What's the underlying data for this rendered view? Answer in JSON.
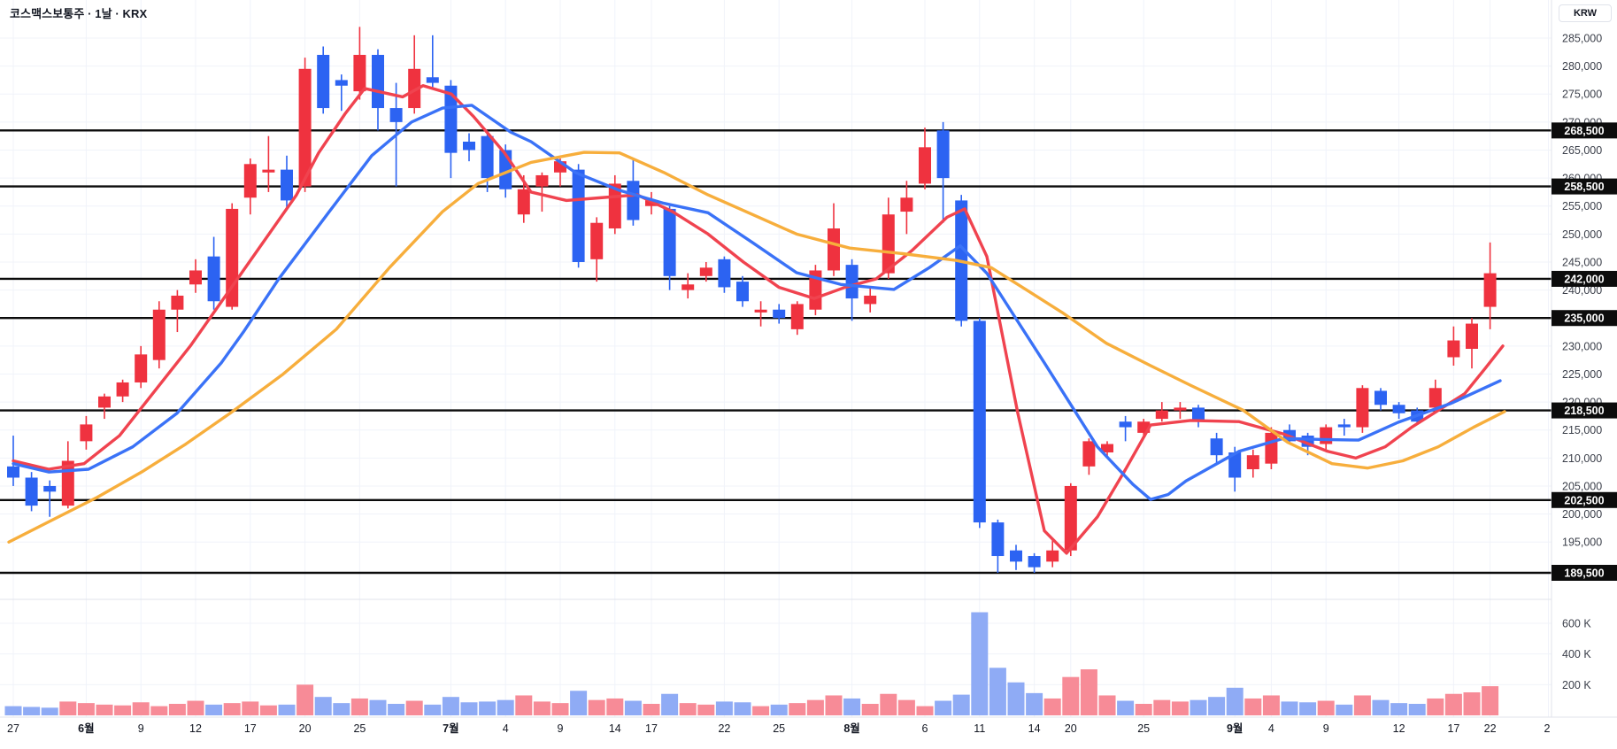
{
  "header": {
    "title": "코스맥스보통주 · 1날 · KRX"
  },
  "price_axis": {
    "currency_label": "KRW"
  },
  "colors": {
    "background": "#ffffff",
    "up": "#ef323f",
    "down": "#2c63f2",
    "ma_fast": "#f0434f",
    "ma_mid": "#3a72f7",
    "ma_slow": "#f7ae3c",
    "volume_up": "#f78b97",
    "volume_down": "#8fabf5",
    "grid": "#f0f3fa",
    "level_line": "#0b0b0b",
    "badge_bg": "#0c0c0c",
    "badge_text": "#ffffff",
    "axis_text": "#3c404b",
    "time_text": "#131722",
    "border": "#e0e3eb"
  },
  "chart_data": {
    "type": "candlestick",
    "title": "코스맥스보통주 · 1날 · KRX",
    "exchange": "KRX",
    "interval": "1날",
    "currency": "KRW",
    "grid": true,
    "y_axis": {
      "tick_min": 195000,
      "tick_max": 285000,
      "tick_step": 5000
    },
    "volume_ticks": [
      {
        "value": 600,
        "label": "600 K"
      },
      {
        "value": 400,
        "label": "400 K"
      },
      {
        "value": 200,
        "label": "200 K"
      }
    ],
    "horizontal_levels": [
      268500,
      258500,
      242000,
      235000,
      218500,
      202500,
      189500
    ],
    "x_labels": [
      {
        "i": 0,
        "t": "27"
      },
      {
        "i": 4,
        "t": "6월",
        "month": true
      },
      {
        "i": 7,
        "t": "9"
      },
      {
        "i": 10,
        "t": "12"
      },
      {
        "i": 13,
        "t": "17"
      },
      {
        "i": 16,
        "t": "20"
      },
      {
        "i": 19,
        "t": "25"
      },
      {
        "i": 24,
        "t": "7월",
        "month": true
      },
      {
        "i": 27,
        "t": "4"
      },
      {
        "i": 30,
        "t": "9"
      },
      {
        "i": 33,
        "t": "14"
      },
      {
        "i": 35,
        "t": "17"
      },
      {
        "i": 39,
        "t": "22"
      },
      {
        "i": 42,
        "t": "25"
      },
      {
        "i": 46,
        "t": "8월",
        "month": true
      },
      {
        "i": 50,
        "t": "6"
      },
      {
        "i": 53,
        "t": "11"
      },
      {
        "i": 56,
        "t": "14"
      },
      {
        "i": 58,
        "t": "20"
      },
      {
        "i": 62,
        "t": "25"
      },
      {
        "i": 67,
        "t": "9월",
        "month": true
      },
      {
        "i": 69,
        "t": "4"
      },
      {
        "i": 72,
        "t": "9"
      },
      {
        "i": 76,
        "t": "12"
      },
      {
        "i": 79,
        "t": "17"
      },
      {
        "i": 81,
        "t": "22"
      },
      {
        "i": 84.2,
        "t": "2"
      }
    ],
    "volume_unit": "K",
    "candles": [
      [
        208500,
        214000,
        205000,
        206500,
        60
      ],
      [
        206500,
        207500,
        200500,
        201500,
        55
      ],
      [
        205000,
        206000,
        199500,
        204000,
        50
      ],
      [
        201500,
        213000,
        201000,
        209500,
        90
      ],
      [
        213000,
        217500,
        211500,
        216000,
        80
      ],
      [
        219000,
        221500,
        217000,
        221000,
        70
      ],
      [
        221000,
        224000,
        220000,
        223500,
        65
      ],
      [
        223500,
        230000,
        222500,
        228500,
        85
      ],
      [
        227500,
        238000,
        226000,
        236500,
        60
      ],
      [
        236500,
        240000,
        232500,
        239000,
        75
      ],
      [
        241000,
        245500,
        239500,
        243500,
        95
      ],
      [
        246000,
        249500,
        236500,
        238000,
        70
      ],
      [
        237000,
        255500,
        236500,
        254500,
        80
      ],
      [
        256500,
        263500,
        253500,
        262500,
        90
      ],
      [
        261000,
        267500,
        257500,
        261500,
        65
      ],
      [
        261500,
        264000,
        254500,
        256000,
        70
      ],
      [
        258500,
        281500,
        257500,
        279500,
        200
      ],
      [
        282000,
        283500,
        271500,
        272500,
        120
      ],
      [
        277500,
        278500,
        272000,
        276500,
        80
      ],
      [
        275500,
        287000,
        274000,
        282000,
        110
      ],
      [
        282000,
        283000,
        268500,
        272500,
        100
      ],
      [
        272500,
        277000,
        258500,
        270000,
        75
      ],
      [
        272500,
        285500,
        271500,
        279500,
        95
      ],
      [
        278000,
        285500,
        276000,
        277000,
        70
      ],
      [
        276500,
        277500,
        260000,
        264500,
        120
      ],
      [
        266500,
        268000,
        263000,
        265000,
        85
      ],
      [
        267500,
        268500,
        257500,
        260000,
        90
      ],
      [
        265000,
        266000,
        256500,
        258000,
        100
      ],
      [
        253500,
        260500,
        252000,
        258000,
        130
      ],
      [
        258500,
        261000,
        254000,
        260500,
        90
      ],
      [
        261000,
        263500,
        258500,
        263000,
        80
      ],
      [
        261500,
        262500,
        244000,
        245000,
        160
      ],
      [
        245500,
        253000,
        241500,
        252000,
        100
      ],
      [
        251000,
        260500,
        250000,
        259000,
        110
      ],
      [
        259500,
        263500,
        251500,
        252500,
        95
      ],
      [
        255000,
        257500,
        253500,
        256000,
        75
      ],
      [
        254500,
        255000,
        240000,
        242500,
        140
      ],
      [
        240000,
        243000,
        238500,
        241000,
        80
      ],
      [
        242500,
        245000,
        241500,
        244000,
        70
      ],
      [
        245500,
        246000,
        239500,
        240500,
        90
      ],
      [
        241500,
        242500,
        237000,
        238000,
        85
      ],
      [
        236000,
        238000,
        233500,
        236500,
        60
      ],
      [
        236500,
        237500,
        234000,
        235000,
        70
      ],
      [
        233000,
        238000,
        232000,
        237500,
        80
      ],
      [
        236500,
        244500,
        235500,
        243500,
        100
      ],
      [
        243500,
        255500,
        242500,
        251000,
        130
      ],
      [
        244500,
        245500,
        234500,
        238500,
        110
      ],
      [
        237500,
        240500,
        236000,
        239000,
        75
      ],
      [
        243000,
        256500,
        242000,
        253500,
        140
      ],
      [
        254000,
        259500,
        250000,
        256500,
        100
      ],
      [
        259000,
        269000,
        258000,
        265500,
        60
      ],
      [
        268500,
        270000,
        252000,
        260000,
        95
      ],
      [
        256000,
        257000,
        233500,
        234500,
        135
      ],
      [
        234500,
        235000,
        197500,
        198500,
        672
      ],
      [
        198500,
        199000,
        189500,
        192500,
        310
      ],
      [
        193500,
        194500,
        190000,
        191500,
        215
      ],
      [
        192500,
        193000,
        189500,
        190500,
        145
      ],
      [
        191500,
        195500,
        190500,
        193500,
        110
      ],
      [
        193500,
        205500,
        192500,
        205000,
        250
      ],
      [
        208500,
        213500,
        207000,
        213000,
        300
      ],
      [
        211000,
        213000,
        210000,
        212500,
        130
      ],
      [
        216500,
        217500,
        213000,
        215500,
        95
      ],
      [
        214500,
        217000,
        213500,
        216500,
        75
      ],
      [
        217000,
        220000,
        216500,
        218500,
        100
      ],
      [
        218500,
        220000,
        217000,
        219000,
        90
      ],
      [
        219000,
        219500,
        215500,
        216500,
        100
      ],
      [
        213500,
        214500,
        209000,
        210500,
        120
      ],
      [
        211000,
        212000,
        204000,
        206500,
        180
      ],
      [
        208000,
        211500,
        206500,
        210500,
        110
      ],
      [
        209000,
        215500,
        208000,
        214500,
        130
      ],
      [
        215000,
        216000,
        212500,
        213000,
        90
      ],
      [
        214000,
        214500,
        210500,
        212000,
        85
      ],
      [
        212500,
        216000,
        211500,
        215500,
        95
      ],
      [
        216000,
        217000,
        214000,
        215500,
        70
      ],
      [
        215500,
        223000,
        214500,
        222500,
        130
      ],
      [
        222000,
        222500,
        218500,
        219500,
        100
      ],
      [
        219500,
        220000,
        217000,
        218000,
        80
      ],
      [
        218500,
        219000,
        216000,
        216500,
        75
      ],
      [
        219000,
        224000,
        218000,
        222500,
        110
      ],
      [
        228000,
        233500,
        226500,
        231000,
        140
      ],
      [
        229500,
        235000,
        226000,
        234000,
        150
      ],
      [
        237000,
        248500,
        233000,
        243000,
        190
      ]
    ],
    "moving_averages": [
      {
        "name": "ma-fast",
        "color": "#f0434f",
        "points": [
          [
            15,
            209500
          ],
          [
            55,
            208000
          ],
          [
            95,
            209000
          ],
          [
            135,
            214000
          ],
          [
            175,
            222000
          ],
          [
            215,
            230000
          ],
          [
            255,
            239000
          ],
          [
            295,
            248000
          ],
          [
            335,
            257000
          ],
          [
            360,
            264500
          ],
          [
            390,
            271500
          ],
          [
            412,
            276000
          ],
          [
            455,
            274500
          ],
          [
            478,
            276500
          ],
          [
            510,
            275000
          ],
          [
            535,
            271000
          ],
          [
            570,
            264500
          ],
          [
            600,
            257500
          ],
          [
            640,
            256000
          ],
          [
            680,
            256500
          ],
          [
            720,
            257000
          ],
          [
            760,
            254000
          ],
          [
            800,
            250000
          ],
          [
            840,
            245000
          ],
          [
            880,
            240500
          ],
          [
            920,
            238500
          ],
          [
            955,
            240500
          ],
          [
            990,
            242000
          ],
          [
            1030,
            247000
          ],
          [
            1070,
            253000
          ],
          [
            1090,
            254500
          ],
          [
            1115,
            246000
          ],
          [
            1150,
            218000
          ],
          [
            1180,
            197000
          ],
          [
            1205,
            193000
          ],
          [
            1240,
            199500
          ],
          [
            1270,
            207500
          ],
          [
            1300,
            215900
          ],
          [
            1345,
            216700
          ],
          [
            1400,
            216500
          ],
          [
            1450,
            214300
          ],
          [
            1500,
            211200
          ],
          [
            1532,
            210000
          ],
          [
            1565,
            212000
          ],
          [
            1595,
            215500
          ],
          [
            1625,
            218500
          ],
          [
            1655,
            221500
          ],
          [
            1678,
            226000
          ],
          [
            1698,
            230000
          ]
        ]
      },
      {
        "name": "ma-mid",
        "color": "#3a72f7",
        "points": [
          [
            15,
            209000
          ],
          [
            55,
            207500
          ],
          [
            100,
            208000
          ],
          [
            150,
            212000
          ],
          [
            200,
            218000
          ],
          [
            250,
            227000
          ],
          [
            275,
            232500
          ],
          [
            315,
            242000
          ],
          [
            372,
            254000
          ],
          [
            420,
            264000
          ],
          [
            465,
            270000
          ],
          [
            500,
            272500
          ],
          [
            533,
            273000
          ],
          [
            577,
            268200
          ],
          [
            600,
            266500
          ],
          [
            650,
            261000
          ],
          [
            700,
            257800
          ],
          [
            750,
            255500
          ],
          [
            800,
            253800
          ],
          [
            850,
            248500
          ],
          [
            900,
            243100
          ],
          [
            950,
            241000
          ],
          [
            1010,
            240100
          ],
          [
            1050,
            244000
          ],
          [
            1085,
            247900
          ],
          [
            1115,
            243000
          ],
          [
            1180,
            227000
          ],
          [
            1240,
            212000
          ],
          [
            1280,
            205300
          ],
          [
            1300,
            202600
          ],
          [
            1320,
            203500
          ],
          [
            1340,
            205900
          ],
          [
            1400,
            211200
          ],
          [
            1450,
            213500
          ],
          [
            1495,
            213300
          ],
          [
            1535,
            213200
          ],
          [
            1580,
            216400
          ],
          [
            1640,
            219800
          ],
          [
            1695,
            223800
          ]
        ]
      },
      {
        "name": "ma-slow",
        "color": "#f7ae3c",
        "points": [
          [
            10,
            195000
          ],
          [
            60,
            199000
          ],
          [
            110,
            203000
          ],
          [
            160,
            207500
          ],
          [
            210,
            212500
          ],
          [
            260,
            218000
          ],
          [
            320,
            225000
          ],
          [
            380,
            233000
          ],
          [
            440,
            244000
          ],
          [
            500,
            254000
          ],
          [
            540,
            259000
          ],
          [
            600,
            262800
          ],
          [
            660,
            264600
          ],
          [
            700,
            264500
          ],
          [
            750,
            261000
          ],
          [
            800,
            257000
          ],
          [
            850,
            253500
          ],
          [
            900,
            250000
          ],
          [
            960,
            247500
          ],
          [
            1020,
            246500
          ],
          [
            1080,
            245300
          ],
          [
            1120,
            244000
          ],
          [
            1160,
            240000
          ],
          [
            1200,
            236000
          ],
          [
            1250,
            230500
          ],
          [
            1300,
            226500
          ],
          [
            1345,
            223000
          ],
          [
            1405,
            218500
          ],
          [
            1455,
            212800
          ],
          [
            1505,
            209000
          ],
          [
            1545,
            208200
          ],
          [
            1585,
            209500
          ],
          [
            1625,
            212000
          ],
          [
            1665,
            215500
          ],
          [
            1700,
            218300
          ]
        ]
      }
    ]
  }
}
